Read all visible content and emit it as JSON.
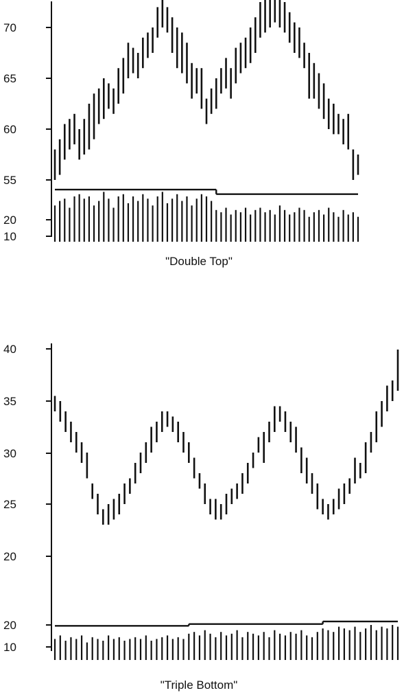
{
  "chart_data": [
    {
      "type": "bar",
      "caption": "\"Double Top\"",
      "price_panel": {
        "y_ticks": [
          "70",
          "65",
          "60",
          "55"
        ],
        "ylim": [
          52,
          73
        ],
        "price_ranges": [
          [
            55,
            58
          ],
          [
            55.5,
            59
          ],
          [
            57,
            60.5
          ],
          [
            58,
            61
          ],
          [
            58.5,
            61.5
          ],
          [
            57,
            60
          ],
          [
            57.5,
            61
          ],
          [
            58,
            62.5
          ],
          [
            59,
            63.5
          ],
          [
            60.5,
            64
          ],
          [
            61,
            65
          ],
          [
            62,
            64.5
          ],
          [
            61.5,
            64
          ],
          [
            62.5,
            66
          ],
          [
            63.5,
            67
          ],
          [
            65,
            68.5
          ],
          [
            65.5,
            68
          ],
          [
            65,
            67.5
          ],
          [
            66,
            69
          ],
          [
            67,
            69.5
          ],
          [
            67.5,
            70
          ],
          [
            69,
            72
          ],
          [
            70,
            73
          ],
          [
            69.5,
            72
          ],
          [
            67.5,
            71
          ],
          [
            66,
            70
          ],
          [
            65.5,
            69.5
          ],
          [
            64.5,
            68.5
          ],
          [
            63,
            66.5
          ],
          [
            63.5,
            66
          ],
          [
            62,
            66
          ],
          [
            60.5,
            63
          ],
          [
            61.5,
            64
          ],
          [
            62,
            65
          ],
          [
            63.5,
            66
          ],
          [
            64,
            67
          ],
          [
            63,
            66
          ],
          [
            64.5,
            68
          ],
          [
            65.5,
            68.5
          ],
          [
            66,
            69
          ],
          [
            66.5,
            70
          ],
          [
            67.5,
            71
          ],
          [
            69,
            72.5
          ],
          [
            69.5,
            73
          ],
          [
            70,
            73.5
          ],
          [
            70.5,
            73.5
          ],
          [
            70,
            73
          ],
          [
            69.5,
            72.5
          ],
          [
            68.5,
            71.5
          ],
          [
            67.5,
            70.5
          ],
          [
            67,
            70
          ],
          [
            66,
            68.5
          ],
          [
            63,
            67.5
          ],
          [
            63,
            66.5
          ],
          [
            62,
            65.5
          ],
          [
            61,
            64.5
          ],
          [
            60,
            63
          ],
          [
            59.5,
            62.5
          ],
          [
            59.5,
            61.5
          ],
          [
            58.5,
            61
          ],
          [
            58,
            61.5
          ],
          [
            55,
            58
          ],
          [
            55.5,
            57.5
          ]
        ]
      },
      "volume_panel": {
        "y_ticks": [
          "20",
          "10"
        ],
        "ylim": [
          5,
          25
        ],
        "average_line": [
          {
            "from": 0,
            "to": 33,
            "value": 23
          },
          {
            "from": 33,
            "to": 63,
            "value": 21
          }
        ],
        "volumes": [
          16,
          18,
          19,
          15,
          20,
          21,
          19,
          20,
          16,
          18,
          22,
          19,
          15,
          20,
          21,
          17,
          20,
          18,
          21,
          19,
          16,
          20,
          22,
          17,
          19,
          21,
          18,
          20,
          16,
          19,
          21,
          20,
          18,
          14,
          13,
          15,
          12,
          14,
          13,
          15,
          12,
          14,
          15,
          13,
          14,
          12,
          16,
          14,
          12,
          13,
          15,
          14,
          11,
          13,
          14,
          12,
          15,
          13,
          11,
          14,
          12,
          13,
          11
        ]
      }
    },
    {
      "type": "bar",
      "caption": "\"Triple Bottom\"",
      "price_panel": {
        "y_ticks": [
          "40",
          "35",
          "30",
          "25",
          "20"
        ],
        "ylim": [
          19,
          41
        ],
        "price_ranges": [
          [
            34,
            35.5
          ],
          [
            33,
            35
          ],
          [
            32,
            34
          ],
          [
            31,
            33
          ],
          [
            30,
            32
          ],
          [
            29,
            31
          ],
          [
            27.5,
            30
          ],
          [
            25.5,
            27
          ],
          [
            24,
            26
          ],
          [
            23,
            24.5
          ],
          [
            23,
            25
          ],
          [
            23.5,
            25.5
          ],
          [
            24,
            26
          ],
          [
            25,
            27
          ],
          [
            26,
            27.5
          ],
          [
            27,
            29
          ],
          [
            28,
            30
          ],
          [
            29,
            31
          ],
          [
            30,
            32.5
          ],
          [
            31,
            33
          ],
          [
            32,
            34
          ],
          [
            32.5,
            34
          ],
          [
            32,
            33.5
          ],
          [
            31,
            33
          ],
          [
            30,
            32
          ],
          [
            29,
            31
          ],
          [
            27.5,
            29.5
          ],
          [
            26.5,
            28
          ],
          [
            25,
            27
          ],
          [
            24,
            25.5
          ],
          [
            23.5,
            25.5
          ],
          [
            23.5,
            25
          ],
          [
            24,
            26
          ],
          [
            25,
            26.5
          ],
          [
            25.5,
            27
          ],
          [
            26,
            28
          ],
          [
            27,
            29
          ],
          [
            28.5,
            30
          ],
          [
            30,
            31.5
          ],
          [
            29,
            32
          ],
          [
            31,
            33
          ],
          [
            32,
            34.5
          ],
          [
            33,
            34.5
          ],
          [
            32,
            34
          ],
          [
            31,
            33
          ],
          [
            30,
            32.5
          ],
          [
            28,
            30.5
          ],
          [
            27,
            29.5
          ],
          [
            26,
            28
          ],
          [
            24.5,
            27
          ],
          [
            24,
            25.5
          ],
          [
            23.5,
            25
          ],
          [
            24,
            25.5
          ],
          [
            24.5,
            26.5
          ],
          [
            25,
            27
          ],
          [
            26,
            27.5
          ],
          [
            27,
            29.5
          ],
          [
            27.5,
            29
          ],
          [
            28,
            31
          ],
          [
            30,
            32
          ],
          [
            31,
            34
          ],
          [
            32.5,
            35
          ],
          [
            34,
            36.5
          ],
          [
            35,
            37
          ],
          [
            36,
            40
          ]
        ]
      },
      "volume_panel": {
        "y_ticks": [
          "20",
          "10"
        ],
        "ylim": [
          5,
          25
        ],
        "average_line": [
          {
            "from": 0,
            "to": 25,
            "value": 19.5
          },
          {
            "from": 25,
            "to": 50,
            "value": 20.5
          },
          {
            "from": 50,
            "to": 65,
            "value": 22
          }
        ],
        "volumes": [
          12,
          14,
          11,
          13,
          12,
          14,
          10,
          13,
          12,
          11,
          14,
          12,
          13,
          11,
          12,
          13,
          12,
          14,
          11,
          12,
          13,
          14,
          12,
          13,
          12,
          15,
          16,
          14,
          17,
          15,
          13,
          16,
          14,
          15,
          17,
          13,
          16,
          15,
          14,
          16,
          13,
          17,
          15,
          14,
          16,
          15,
          17,
          14,
          13,
          16,
          18,
          17,
          16,
          19,
          18,
          17,
          19,
          16,
          18,
          20,
          17,
          19,
          18,
          20,
          19
        ]
      }
    }
  ]
}
